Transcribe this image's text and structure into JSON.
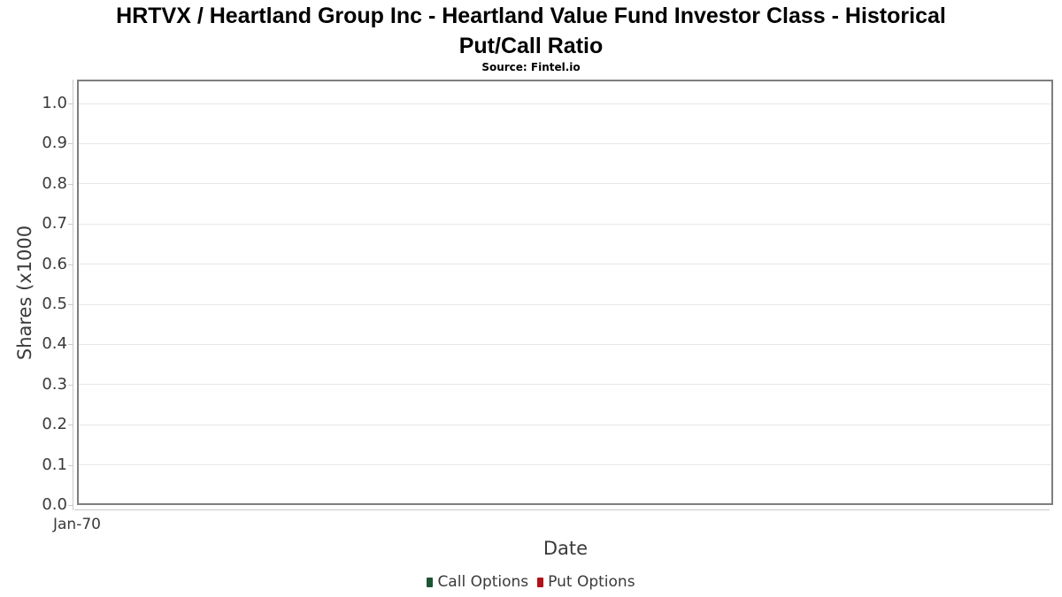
{
  "header": {
    "title_line1": "HRTVX / Heartland Group Inc - Heartland Value Fund Investor Class - Historical",
    "title_line2": "Put/Call Ratio",
    "subtitle": "Source: Fintel.io"
  },
  "chart_data": {
    "type": "line",
    "title": "HRTVX / Heartland Group Inc - Heartland Value Fund Investor Class - Historical Put/Call Ratio",
    "subtitle": "Source: Fintel.io",
    "xlabel": "Date",
    "ylabel": "Shares (x1000",
    "x_tick_labels": [
      "Jan-70"
    ],
    "y_ticks": [
      0.0,
      0.1,
      0.2,
      0.3,
      0.4,
      0.5,
      0.6,
      0.7,
      0.8,
      0.9,
      1.0
    ],
    "ylim": [
      0.0,
      1.06
    ],
    "grid": "horizontal",
    "legend_position": "bottom",
    "series": [
      {
        "name": "Call Options",
        "color": "#1c5532",
        "values": []
      },
      {
        "name": "Put Options",
        "color": "#b01217",
        "values": []
      }
    ],
    "colors": {
      "plot_border": "#7e7e7e",
      "gridline": "#e7e7e7",
      "axis_line": "#c9c9c9",
      "text": "#3a3a3a",
      "title_text": "#000000"
    }
  }
}
